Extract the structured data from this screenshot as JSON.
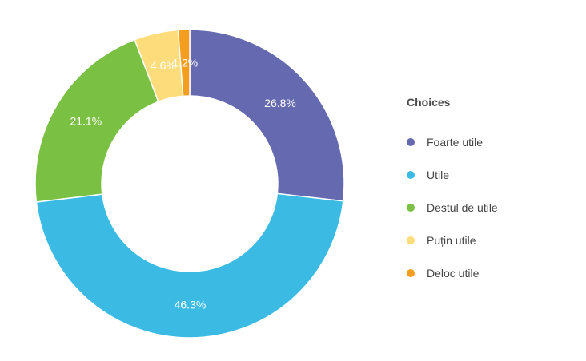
{
  "chart_data": {
    "type": "pie",
    "legend_title": "Choices",
    "legend_position": "right",
    "categories": [
      "Foarte utile",
      "Utile",
      "Destul de utile",
      "Puțin utile",
      "Deloc utile"
    ],
    "values": [
      26.8,
      46.3,
      21.1,
      4.6,
      1.2
    ],
    "labels": [
      "26.8%",
      "46.3%",
      "21.1%",
      "4.6%",
      "1.2%"
    ],
    "colors": [
      "#6469b0",
      "#3bbbe4",
      "#79c043",
      "#fddc7b",
      "#f49d1e"
    ]
  }
}
